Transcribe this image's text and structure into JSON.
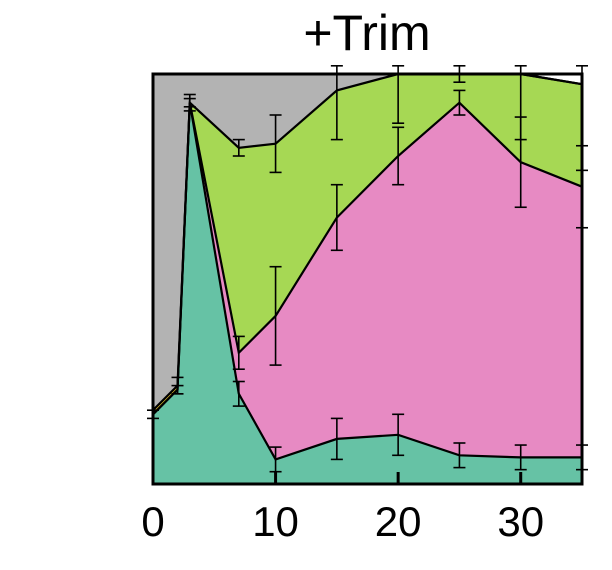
{
  "chart_data": {
    "type": "area",
    "stacked": true,
    "title": "+Trim",
    "xlabel": "",
    "ylabel": "",
    "xlim": [
      0,
      35
    ],
    "ylim": [
      0,
      1
    ],
    "x_ticks": [
      0,
      10,
      20,
      30
    ],
    "x_tick_labels": [
      "0",
      "10",
      "20",
      "30"
    ],
    "y_ticks": [],
    "grid": false,
    "legend": "none",
    "x": [
      0,
      2,
      3,
      7,
      10,
      15,
      20,
      25,
      30,
      35
    ],
    "series": [
      {
        "color": "#66c2a5",
        "values": [
          0.17,
          0.23,
          0.93,
          0.22,
          0.06,
          0.11,
          0.12,
          0.07,
          0.065,
          0.065
        ],
        "err": [
          0.01,
          0.01,
          0.01,
          0.03,
          0.03,
          0.05,
          0.05,
          0.03,
          0.03,
          0.03
        ]
      },
      {
        "color": "#e78ac3",
        "values": [
          0.0,
          0.0,
          0.0,
          0.1,
          0.35,
          0.54,
          0.68,
          0.86,
          0.72,
          0.66
        ],
        "err": [
          0.0,
          0.0,
          0.0,
          0.04,
          0.12,
          0.08,
          0.07,
          0.03,
          0.11,
          0.1
        ]
      },
      {
        "color": "#fdd835",
        "values": [
          0.01,
          0.01,
          0.0,
          0.0,
          0.0,
          0.0,
          0.0,
          0.0,
          0.0,
          0.0
        ],
        "err": [
          0.0,
          0.0,
          0.0,
          0.0,
          0.0,
          0.0,
          0.0,
          0.0,
          0.0,
          0.0
        ]
      },
      {
        "color": "#a6d854",
        "values": [
          0.0,
          0.0,
          0.0,
          0.5,
          0.42,
          0.31,
          0.2,
          0.08,
          0.22,
          0.25
        ],
        "err": [
          0.0,
          0.0,
          0.01,
          0.02,
          0.07,
          0.12,
          0.12,
          0.02,
          0.16,
          0.21
        ]
      },
      {
        "color": "#b3b3b3",
        "values": [
          0.82,
          0.76,
          0.07,
          0.18,
          0.17,
          0.04,
          0.0,
          0.0,
          0.0,
          0.0
        ],
        "err": [
          0.0,
          0.0,
          0.0,
          0.0,
          0.0,
          0.0,
          0.0,
          0.0,
          0.0,
          0.0
        ]
      }
    ],
    "boundary_err": [
      [
        0.01,
        0.01,
        0.01,
        0.03,
        0.03,
        0.05,
        0.05,
        0.03,
        0.03,
        0.03
      ],
      [
        0.0,
        0.0,
        0.0,
        0.04,
        0.12,
        0.08,
        0.07,
        0.03,
        0.11,
        0.1
      ],
      [
        0.0,
        0.0,
        0.0,
        0.0,
        0.0,
        0.0,
        0.0,
        0.0,
        0.0,
        0.0
      ],
      [
        0.0,
        0.02,
        0.02,
        0.02,
        0.07,
        0.12,
        0.12,
        0.02,
        0.16,
        0.21
      ]
    ]
  }
}
